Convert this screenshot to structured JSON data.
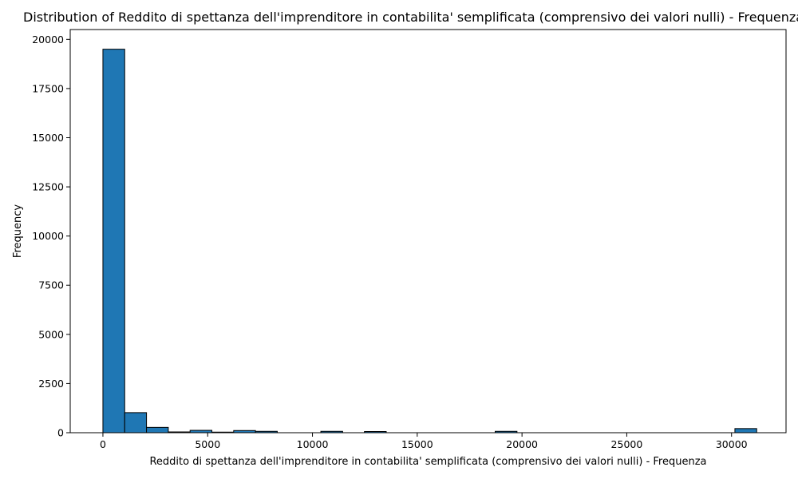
{
  "chart_data": {
    "type": "bar",
    "title": "Distribution of Reddito di spettanza dell'imprenditore in contabilita' semplificata (comprensivo dei valori nulli) - Frequenza",
    "xlabel": "Reddito di spettanza dell'imprenditore in contabilita' semplificata (comprensivo dei valori nulli) - Frequenza",
    "ylabel": "Frequency",
    "xlim": [
      -1560,
      32600
    ],
    "ylim": [
      0,
      20500
    ],
    "xticks": [
      0,
      5000,
      10000,
      15000,
      20000,
      25000,
      30000
    ],
    "yticks": [
      0,
      2500,
      5000,
      7500,
      10000,
      12500,
      15000,
      17500,
      20000
    ],
    "bar_color": "#1f77b4",
    "edge_color": "#000000",
    "grid": false,
    "bins": [
      {
        "x0": 0,
        "x1": 1040,
        "value": 19500
      },
      {
        "x0": 1040,
        "x1": 2080,
        "value": 1020
      },
      {
        "x0": 2080,
        "x1": 3120,
        "value": 270
      },
      {
        "x0": 3120,
        "x1": 4160,
        "value": 40
      },
      {
        "x0": 4160,
        "x1": 5200,
        "value": 120
      },
      {
        "x0": 5200,
        "x1": 6240,
        "value": 30
      },
      {
        "x0": 6240,
        "x1": 7280,
        "value": 110
      },
      {
        "x0": 7280,
        "x1": 8320,
        "value": 70
      },
      {
        "x0": 10400,
        "x1": 11440,
        "value": 70
      },
      {
        "x0": 12480,
        "x1": 13520,
        "value": 60
      },
      {
        "x0": 18720,
        "x1": 19760,
        "value": 70
      },
      {
        "x0": 30160,
        "x1": 31200,
        "value": 210
      }
    ]
  }
}
